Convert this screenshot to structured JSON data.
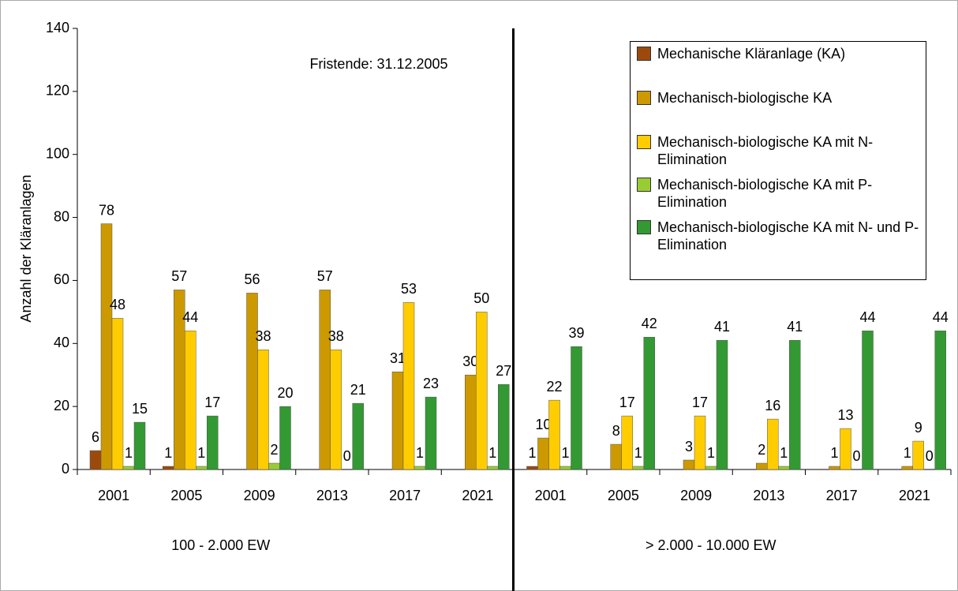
{
  "chart_data": {
    "type": "bar",
    "annotation": "Fristende: 31.12.2005",
    "y_label": "Anzahl der Kläranlagen",
    "categories": [
      "2001",
      "2005",
      "2009",
      "2013",
      "2017",
      "2021",
      "2001",
      "2005",
      "2009",
      "2013",
      "2017",
      "2021"
    ],
    "groups": [
      "100 - 2.000 EW",
      "> 2.000 - 10.000 EW"
    ],
    "ylim": [
      0,
      140
    ],
    "yticks": [
      0,
      20,
      40,
      60,
      80,
      100,
      120,
      140
    ],
    "series": [
      {
        "name": "Mechanische Kläranlage (KA)",
        "color": "#9c4a0c",
        "values": [
          6,
          1,
          null,
          null,
          null,
          null,
          1,
          null,
          null,
          null,
          null,
          null
        ]
      },
      {
        "name": "Mechanisch-biologische KA",
        "color": "#cc9900",
        "values": [
          78,
          57,
          56,
          57,
          31,
          30,
          10,
          8,
          3,
          2,
          1,
          1
        ]
      },
      {
        "name": "Mechanisch-biologische KA mit N-Elimination",
        "color": "#ffcc00",
        "values": [
          48,
          44,
          38,
          38,
          53,
          50,
          22,
          17,
          17,
          16,
          13,
          9
        ]
      },
      {
        "name": "Mechanisch-biologische KA mit P-Elimination",
        "color": "#99cc33",
        "values": [
          1,
          1,
          2,
          0,
          1,
          1,
          1,
          1,
          1,
          1,
          0,
          0
        ]
      },
      {
        "name": "Mechanisch-biologische KA mit N- und P-Elimination",
        "color": "#339933",
        "values": [
          15,
          17,
          20,
          21,
          23,
          27,
          39,
          42,
          41,
          41,
          44,
          44
        ]
      }
    ]
  }
}
